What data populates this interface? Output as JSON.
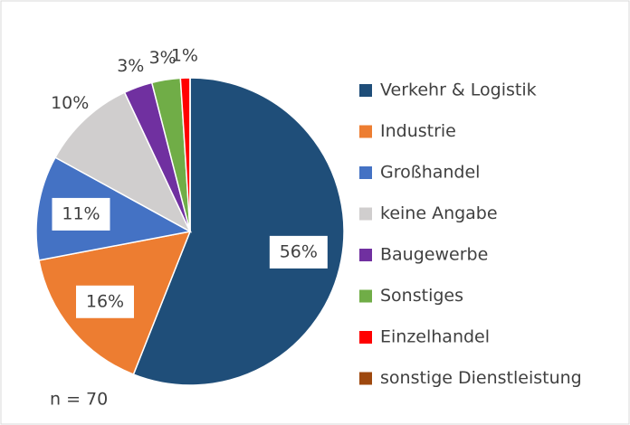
{
  "chart_data": {
    "type": "pie",
    "categories": [
      "Verkehr & Logistik",
      "Industrie",
      "Großhandel",
      "keine Angabe",
      "Baugewerbe",
      "Sonstiges",
      "Einzelhandel",
      "sonstige Dienstleistung"
    ],
    "values": [
      56,
      16,
      11,
      10,
      3,
      3,
      1,
      0
    ],
    "value_labels": [
      "56%",
      "16%",
      "11%",
      "10%",
      "3%",
      "3%",
      "1%",
      null
    ],
    "colors": [
      "#1f4e79",
      "#ed7d31",
      "#4472c4",
      "#d0cece",
      "#7030a0",
      "#70ad47",
      "#ff0000",
      "#9e480e"
    ],
    "annotation": "n = 70",
    "legend": "right"
  }
}
